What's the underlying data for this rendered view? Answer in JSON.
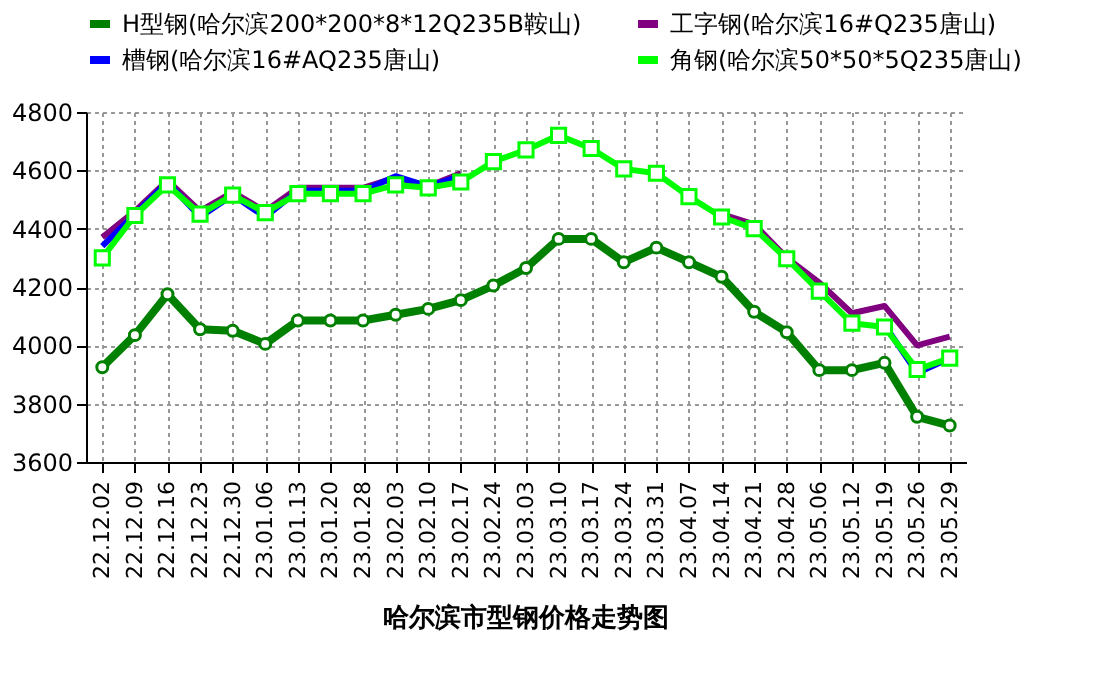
{
  "chart_data": {
    "type": "line",
    "title": "哈尔滨市型钢价格走势图",
    "categories": [
      "22.12.02",
      "22.12.09",
      "22.12.16",
      "22.12.23",
      "22.12.30",
      "23.01.06",
      "23.01.13",
      "23.01.20",
      "23.01.28",
      "23.02.03",
      "23.02.10",
      "23.02.17",
      "23.02.24",
      "23.03.03",
      "23.03.10",
      "23.03.17",
      "23.03.24",
      "23.03.31",
      "23.04.07",
      "23.04.14",
      "23.04.21",
      "23.04.28",
      "23.05.06",
      "23.05.12",
      "23.05.19",
      "23.05.26",
      "23.05.29"
    ],
    "series": [
      {
        "name": "H型钢(哈尔滨200*200*8*12Q235B鞍山)",
        "color": "#008000",
        "marker": "circle",
        "values": [
          3925,
          4035,
          4175,
          4055,
          4050,
          4005,
          4085,
          4085,
          4085,
          4105,
          4125,
          4155,
          4205,
          4265,
          4365,
          4365,
          4285,
          4335,
          4285,
          4235,
          4115,
          4045,
          3915,
          3915,
          3940,
          3755,
          3725
        ]
      },
      {
        "name": "工字钢(哈尔滨16#Q235唐山)",
        "color": "#800080",
        "marker": "none",
        "values": [
          4370,
          4460,
          4565,
          4460,
          4525,
          4460,
          4540,
          4540,
          4540,
          4575,
          4545,
          4590,
          null,
          null,
          null,
          null,
          null,
          null,
          null,
          4450,
          4415,
          4300,
          4215,
          4110,
          4135,
          4000,
          4030
        ]
      },
      {
        "name": "槽钢(哈尔滨16#AQ235唐山)",
        "color": "#0000ff",
        "marker": "none",
        "values": [
          4340,
          4450,
          4560,
          4440,
          4515,
          4440,
          4530,
          4530,
          4530,
          4580,
          4545,
          4580,
          null,
          null,
          null,
          null,
          null,
          null,
          null,
          null,
          null,
          null,
          null,
          null,
          4070,
          3905,
          3956
        ]
      },
      {
        "name": "角钢(哈尔滨50*50*5Q235唐山)",
        "color": "#00ff00",
        "marker": "square",
        "values": [
          4300,
          4445,
          4550,
          4450,
          4515,
          4455,
          4520,
          4520,
          4520,
          4550,
          4540,
          4560,
          4630,
          4670,
          4720,
          4675,
          4605,
          4590,
          4510,
          4440,
          4400,
          4297,
          4186,
          4076,
          4063,
          3917,
          3956
        ]
      }
    ],
    "ylim": [
      3600,
      4800
    ],
    "yticks": [
      3600,
      3800,
      4000,
      4200,
      4400,
      4600,
      4800
    ],
    "grid": true,
    "legend": "top"
  }
}
